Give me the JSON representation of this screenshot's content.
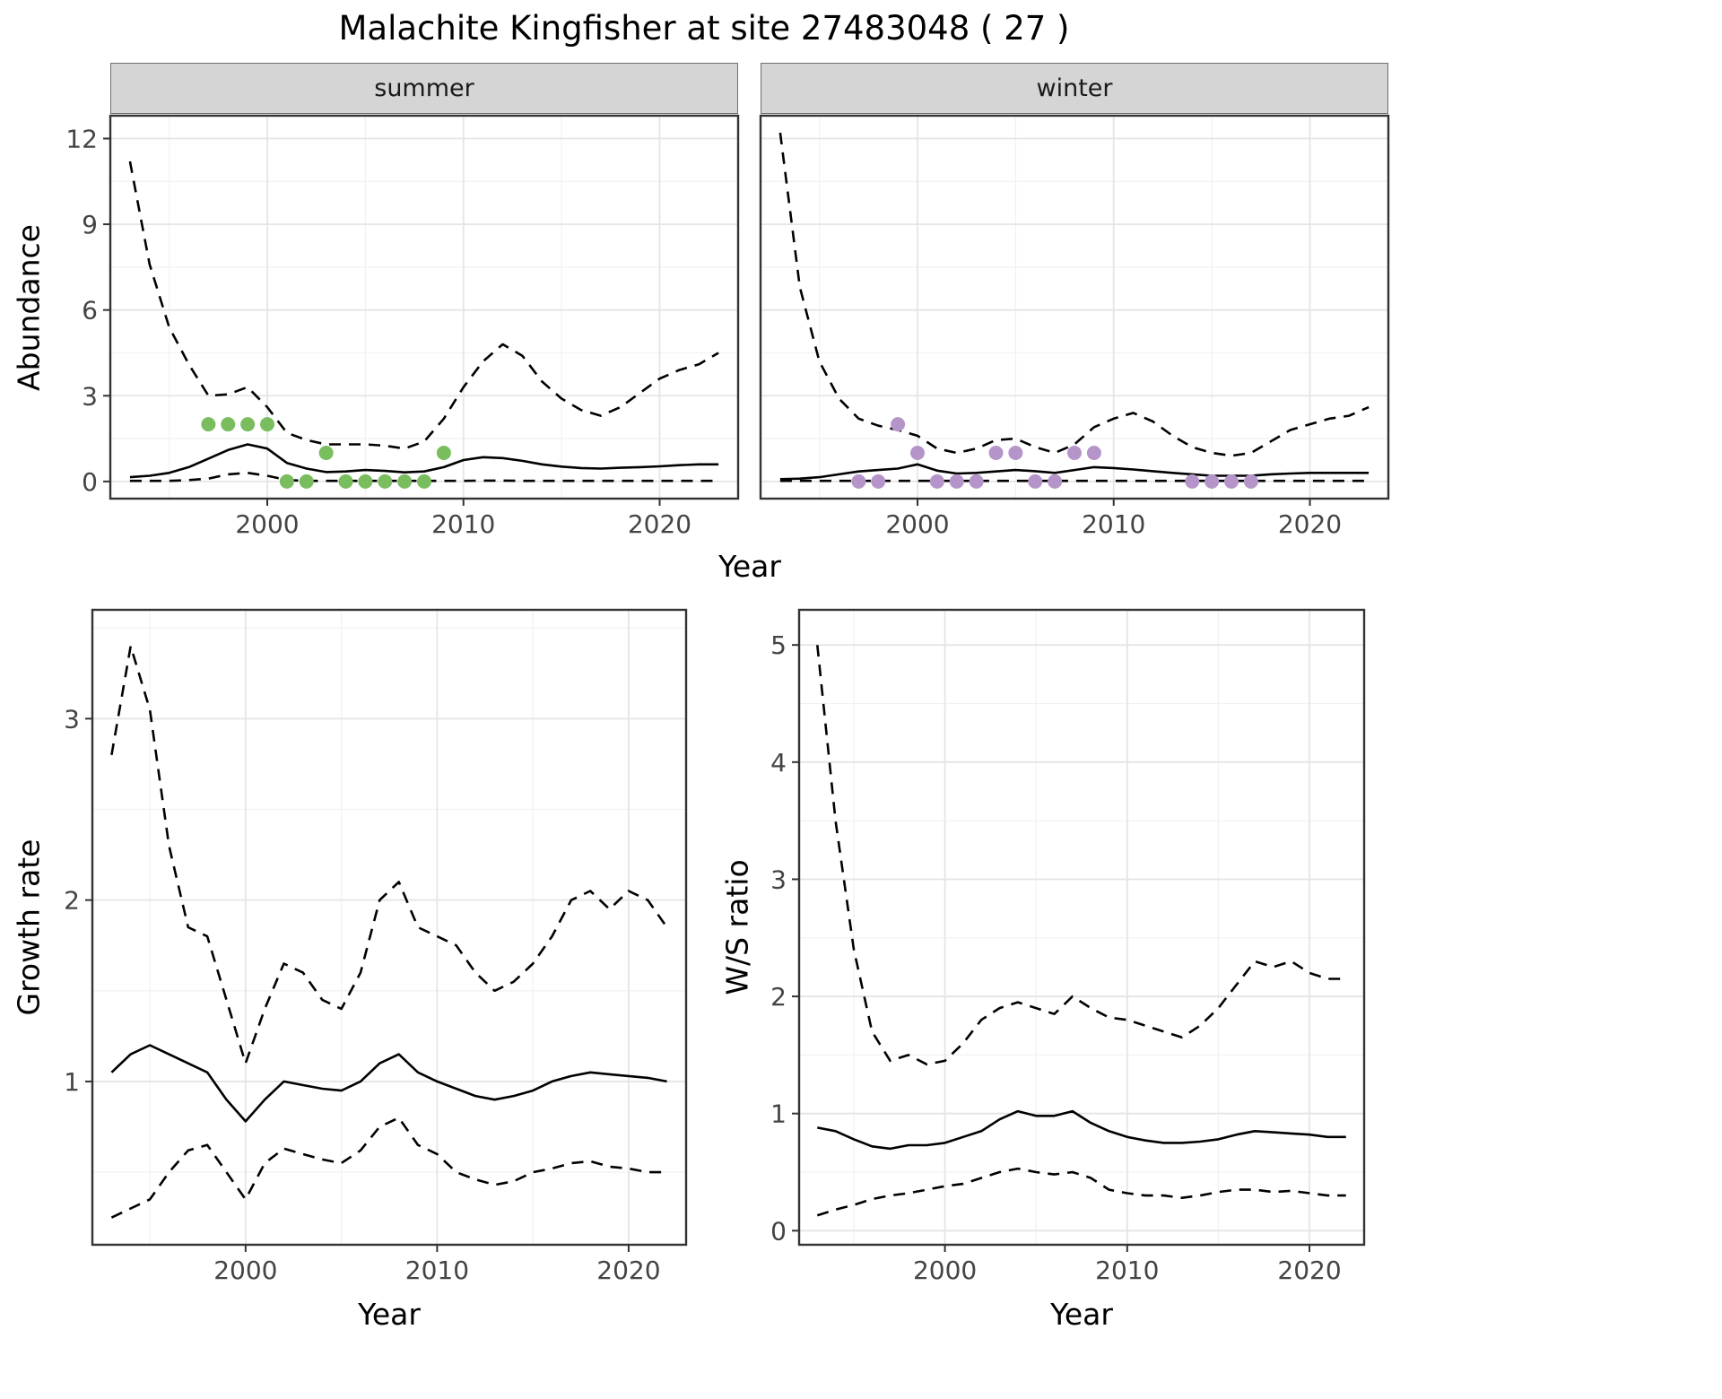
{
  "title": "Malachite Kingfisher at site 27483048 ( 27 )",
  "colors": {
    "summer_points": "#79bd5f",
    "winter_points": "#b595c9",
    "line": "#000000",
    "strip_bg": "#d5d5d5",
    "grid_major": "#e5e5e5",
    "grid_minor": "#f2f2f2",
    "panel_border": "#333333",
    "tick_label": "#444444"
  },
  "chart_data": [
    {
      "id": "abundance-summer",
      "type": "line",
      "facet": "summer",
      "xlabel": "Year",
      "ylabel": "Abundance",
      "xlim": [
        1992,
        2024
      ],
      "ylim": [
        -0.6,
        12.8
      ],
      "xticks": [
        2000,
        2010,
        2020
      ],
      "yticks": [
        0,
        3,
        6,
        9,
        12
      ],
      "x": [
        1993,
        1994,
        1995,
        1996,
        1997,
        1998,
        1999,
        2000,
        2001,
        2002,
        2003,
        2004,
        2005,
        2006,
        2007,
        2008,
        2009,
        2010,
        2011,
        2012,
        2013,
        2014,
        2015,
        2016,
        2017,
        2018,
        2019,
        2020,
        2021,
        2022,
        2023
      ],
      "series": [
        {
          "name": "upper-ci",
          "style": "dashed",
          "values": [
            11.2,
            7.6,
            5.4,
            4.1,
            3.0,
            3.05,
            3.3,
            2.6,
            1.7,
            1.45,
            1.3,
            1.3,
            1.3,
            1.25,
            1.15,
            1.4,
            2.2,
            3.3,
            4.2,
            4.8,
            4.4,
            3.5,
            2.9,
            2.5,
            2.3,
            2.6,
            3.1,
            3.6,
            3.9,
            4.1,
            4.5
          ]
        },
        {
          "name": "fit",
          "style": "solid",
          "values": [
            0.15,
            0.2,
            0.3,
            0.5,
            0.8,
            1.1,
            1.3,
            1.15,
            0.65,
            0.45,
            0.33,
            0.35,
            0.4,
            0.37,
            0.32,
            0.35,
            0.5,
            0.75,
            0.85,
            0.82,
            0.72,
            0.6,
            0.52,
            0.47,
            0.45,
            0.48,
            0.5,
            0.53,
            0.57,
            0.6,
            0.6
          ]
        },
        {
          "name": "lower-ci",
          "style": "dashed",
          "values": [
            0.02,
            0.02,
            0.02,
            0.05,
            0.1,
            0.25,
            0.3,
            0.2,
            0.05,
            0.02,
            0.02,
            0.02,
            0.02,
            0.02,
            0.02,
            0.02,
            0.02,
            0.02,
            0.03,
            0.03,
            0.02,
            0.02,
            0.02,
            0.02,
            0.02,
            0.02,
            0.02,
            0.02,
            0.02,
            0.02,
            0.02
          ]
        }
      ],
      "points": {
        "name": "summer-observations",
        "color": "#79bd5f",
        "x": [
          1997,
          1998,
          1999,
          2000,
          2001,
          2002,
          2003,
          2004,
          2005,
          2006,
          2007,
          2008,
          2009
        ],
        "y": [
          2,
          2,
          2,
          2,
          0,
          0,
          1,
          0,
          0,
          0,
          0,
          0,
          1
        ]
      }
    },
    {
      "id": "abundance-winter",
      "type": "line",
      "facet": "winter",
      "xlabel": "Year",
      "ylabel": "Abundance",
      "xlim": [
        1992,
        2024
      ],
      "ylim": [
        -0.6,
        12.8
      ],
      "xticks": [
        2000,
        2010,
        2020
      ],
      "yticks": [
        0,
        3,
        6,
        9,
        12
      ],
      "x": [
        1993,
        1994,
        1995,
        1996,
        1997,
        1998,
        1999,
        2000,
        2001,
        2002,
        2003,
        2004,
        2005,
        2006,
        2007,
        2008,
        2009,
        2010,
        2011,
        2012,
        2013,
        2014,
        2015,
        2016,
        2017,
        2018,
        2019,
        2020,
        2021,
        2022,
        2023
      ],
      "series": [
        {
          "name": "upper-ci",
          "style": "dashed",
          "values": [
            12.2,
            6.8,
            4.2,
            2.9,
            2.2,
            1.95,
            1.8,
            1.6,
            1.15,
            1.0,
            1.15,
            1.45,
            1.5,
            1.2,
            1.0,
            1.3,
            1.9,
            2.2,
            2.4,
            2.1,
            1.6,
            1.2,
            1.0,
            0.9,
            1.0,
            1.4,
            1.8,
            2.0,
            2.2,
            2.3,
            2.6
          ]
        },
        {
          "name": "fit",
          "style": "solid",
          "values": [
            0.08,
            0.1,
            0.15,
            0.25,
            0.35,
            0.4,
            0.45,
            0.6,
            0.38,
            0.28,
            0.3,
            0.35,
            0.4,
            0.36,
            0.3,
            0.4,
            0.5,
            0.47,
            0.42,
            0.36,
            0.3,
            0.25,
            0.2,
            0.2,
            0.2,
            0.25,
            0.28,
            0.3,
            0.3,
            0.3,
            0.3
          ]
        },
        {
          "name": "lower-ci",
          "style": "dashed",
          "values": [
            0.02,
            0.02,
            0.02,
            0.02,
            0.02,
            0.02,
            0.02,
            0.02,
            0.02,
            0.02,
            0.02,
            0.02,
            0.02,
            0.02,
            0.02,
            0.02,
            0.02,
            0.02,
            0.02,
            0.02,
            0.02,
            0.02,
            0.02,
            0.02,
            0.02,
            0.02,
            0.02,
            0.02,
            0.02,
            0.02,
            0.02
          ]
        }
      ],
      "points": {
        "name": "winter-observations",
        "color": "#b595c9",
        "x": [
          1997,
          1998,
          1999,
          2000,
          2001,
          2002,
          2003,
          2004,
          2005,
          2006,
          2007,
          2008,
          2009,
          2014,
          2015,
          2016,
          2017
        ],
        "y": [
          0,
          0,
          2,
          1,
          0,
          0,
          0,
          1,
          1,
          0,
          0,
          1,
          1,
          0,
          0,
          0,
          0
        ]
      }
    },
    {
      "id": "growth-rate",
      "type": "line",
      "facet": "",
      "xlabel": "Year",
      "ylabel": "Growth rate",
      "xlim": [
        1992,
        2023
      ],
      "ylim": [
        0.1,
        3.6
      ],
      "xticks": [
        2000,
        2010,
        2020
      ],
      "yticks": [
        1,
        2,
        3
      ],
      "x": [
        1993,
        1994,
        1995,
        1996,
        1997,
        1998,
        1999,
        2000,
        2001,
        2002,
        2003,
        2004,
        2005,
        2006,
        2007,
        2008,
        2009,
        2010,
        2011,
        2012,
        2013,
        2014,
        2015,
        2016,
        2017,
        2018,
        2019,
        2020,
        2021,
        2022
      ],
      "series": [
        {
          "name": "upper-ci",
          "style": "dashed",
          "values": [
            2.8,
            3.4,
            3.05,
            2.3,
            1.85,
            1.8,
            1.45,
            1.1,
            1.4,
            1.65,
            1.6,
            1.45,
            1.4,
            1.6,
            2.0,
            2.1,
            1.85,
            1.8,
            1.75,
            1.6,
            1.5,
            1.55,
            1.65,
            1.8,
            2.0,
            2.05,
            1.95,
            2.05,
            2.0,
            1.85
          ]
        },
        {
          "name": "fit",
          "style": "solid",
          "values": [
            1.05,
            1.15,
            1.2,
            1.15,
            1.1,
            1.05,
            0.9,
            0.78,
            0.9,
            1.0,
            0.98,
            0.96,
            0.95,
            1.0,
            1.1,
            1.15,
            1.05,
            1.0,
            0.96,
            0.92,
            0.9,
            0.92,
            0.95,
            1.0,
            1.03,
            1.05,
            1.04,
            1.03,
            1.02,
            1.0
          ]
        },
        {
          "name": "lower-ci",
          "style": "dashed",
          "values": [
            0.25,
            0.3,
            0.35,
            0.5,
            0.62,
            0.65,
            0.5,
            0.35,
            0.55,
            0.63,
            0.6,
            0.57,
            0.55,
            0.62,
            0.75,
            0.8,
            0.65,
            0.6,
            0.5,
            0.46,
            0.43,
            0.45,
            0.5,
            0.52,
            0.55,
            0.56,
            0.53,
            0.52,
            0.5,
            0.5
          ]
        }
      ]
    },
    {
      "id": "ws-ratio",
      "type": "line",
      "facet": "",
      "xlabel": "Year",
      "ylabel": "W/S ratio",
      "xlim": [
        1992,
        2023
      ],
      "ylim": [
        -0.12,
        5.3
      ],
      "xticks": [
        2000,
        2010,
        2020
      ],
      "yticks": [
        0,
        1,
        2,
        3,
        4,
        5
      ],
      "x": [
        1993,
        1994,
        1995,
        1996,
        1997,
        1998,
        1999,
        2000,
        2001,
        2002,
        2003,
        2004,
        2005,
        2006,
        2007,
        2008,
        2009,
        2010,
        2011,
        2012,
        2013,
        2014,
        2015,
        2016,
        2017,
        2018,
        2019,
        2020,
        2021,
        2022
      ],
      "series": [
        {
          "name": "upper-ci",
          "style": "dashed",
          "values": [
            5.0,
            3.5,
            2.4,
            1.7,
            1.45,
            1.5,
            1.42,
            1.45,
            1.6,
            1.8,
            1.9,
            1.95,
            1.9,
            1.85,
            2.0,
            1.9,
            1.82,
            1.8,
            1.75,
            1.7,
            1.65,
            1.75,
            1.9,
            2.1,
            2.3,
            2.25,
            2.3,
            2.2,
            2.15,
            2.15
          ]
        },
        {
          "name": "fit",
          "style": "solid",
          "values": [
            0.88,
            0.85,
            0.78,
            0.72,
            0.7,
            0.73,
            0.73,
            0.75,
            0.8,
            0.85,
            0.95,
            1.02,
            0.98,
            0.98,
            1.02,
            0.92,
            0.85,
            0.8,
            0.77,
            0.75,
            0.75,
            0.76,
            0.78,
            0.82,
            0.85,
            0.84,
            0.83,
            0.82,
            0.8,
            0.8
          ]
        },
        {
          "name": "lower-ci",
          "style": "dashed",
          "values": [
            0.13,
            0.18,
            0.22,
            0.27,
            0.3,
            0.32,
            0.35,
            0.38,
            0.4,
            0.45,
            0.5,
            0.53,
            0.5,
            0.48,
            0.5,
            0.45,
            0.35,
            0.32,
            0.3,
            0.3,
            0.28,
            0.3,
            0.33,
            0.35,
            0.35,
            0.33,
            0.34,
            0.32,
            0.3,
            0.3
          ]
        }
      ]
    }
  ]
}
